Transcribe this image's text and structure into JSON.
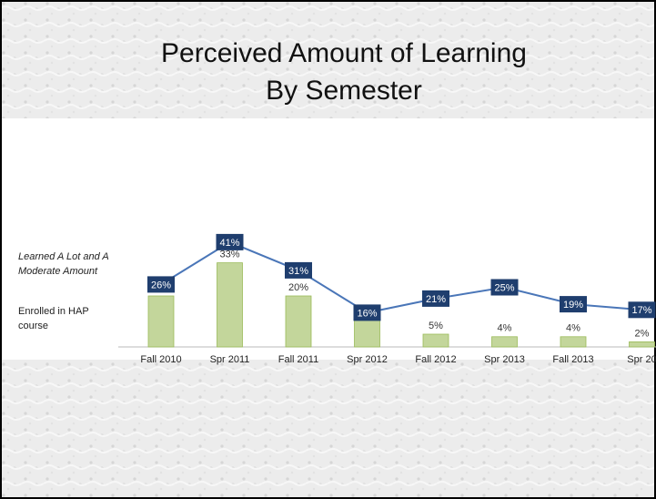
{
  "chart_data": {
    "type": "bar_line",
    "title": "Perceived Amount of Learning",
    "subtitle": "By Semester",
    "categories": [
      "Fall 2010",
      "Spr 2011",
      "Fall 2011",
      "Spr 2012",
      "Fall 2012",
      "Spr 2013",
      "Fall 2013",
      "Spr 20"
    ],
    "series": [
      {
        "name": "Enrolled in HAP course",
        "type": "bar",
        "color": "#c3d69b",
        "values": [
          20,
          33,
          20,
          11,
          5,
          4,
          4,
          2
        ],
        "value_labels": [
          "20%",
          "33%",
          "20%",
          "11%",
          "5%",
          "4%",
          "4%",
          "2%"
        ]
      },
      {
        "name": "Learned A Lot and A Moderate Amount",
        "type": "line",
        "color": "#4a76b8",
        "axis": "y2",
        "values": [
          26,
          41,
          31,
          16,
          21,
          25,
          19,
          17
        ],
        "value_labels": [
          "26%",
          "41%",
          "31%",
          "16%",
          "21%",
          "25%",
          "19%",
          "17%"
        ]
      }
    ],
    "ylim": [
      0,
      40
    ],
    "y2lim": [
      0,
      50
    ]
  }
}
